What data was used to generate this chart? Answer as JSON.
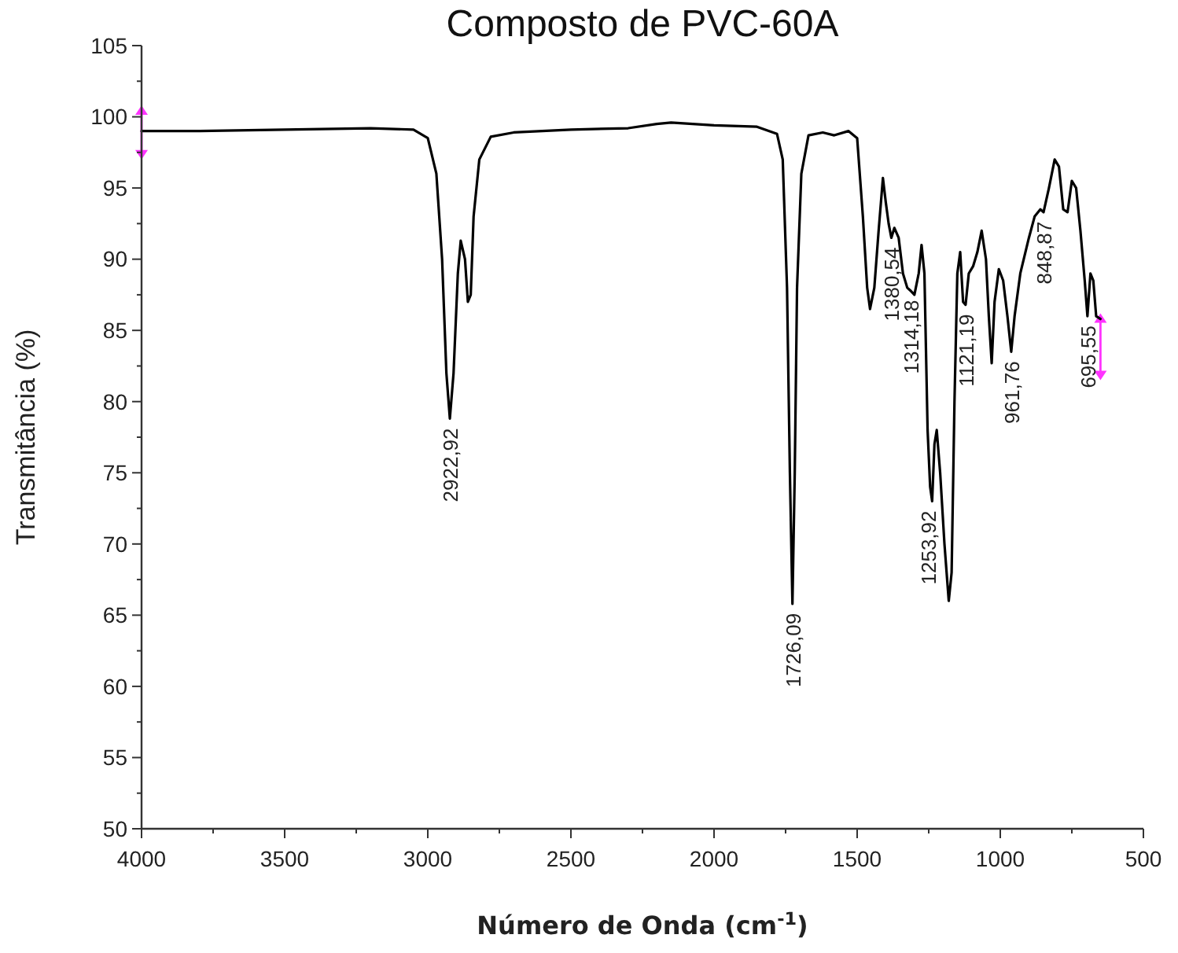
{
  "chart_data": {
    "type": "line",
    "title": "Composto de PVC-60A",
    "xlabel": "Número de Onda (cm$^{-1}$)",
    "ylabel": "Transmitância (%)",
    "xlim": [
      4000,
      500
    ],
    "ylim": [
      50,
      105
    ],
    "xticks": [
      4000,
      {
        "value": 3750,
        "label": null
      },
      3500,
      {
        "value": 3250,
        "label": null
      },
      3000,
      {
        "value": 2750,
        "label": null
      },
      2500,
      {
        "value": 2250,
        "label": null
      },
      2000,
      {
        "value": 1750,
        "label": null
      },
      1500,
      {
        "value": 1250,
        "label": null
      },
      1000,
      {
        "value": 750,
        "label": null
      },
      500
    ],
    "yticks": [
      50,
      {
        "value": 52.5,
        "label": null
      },
      55,
      {
        "value": 57.5,
        "label": null
      },
      60,
      {
        "value": 62.5,
        "label": null
      },
      65,
      {
        "value": 67.5,
        "label": null
      },
      70,
      {
        "value": 72.5,
        "label": null
      },
      75,
      {
        "value": 77.5,
        "label": null
      },
      80,
      {
        "value": 82.5,
        "label": null
      },
      85,
      {
        "value": 87.5,
        "label": null
      },
      90,
      {
        "value": 92.5,
        "label": null
      },
      95,
      {
        "value": 97.5,
        "label": null
      },
      100,
      {
        "value": 102.5,
        "label": null
      },
      105
    ],
    "grid": false,
    "marker": "none",
    "line_style": "solid",
    "series": [
      {
        "color": "#000000",
        "x": [
          4000,
          3800,
          3500,
          3200,
          3050,
          3000,
          2970,
          2950,
          2935,
          2922.92,
          2910,
          2895,
          2885,
          2870,
          2860,
          2850,
          2840,
          2820,
          2780,
          2700,
          2500,
          2300,
          2200,
          2150,
          2000,
          1850,
          1780,
          1760,
          1745,
          1735,
          1726.09,
          1718,
          1710,
          1695,
          1670,
          1620,
          1580,
          1530,
          1500,
          1480,
          1465,
          1455,
          1440,
          1425,
          1410,
          1400,
          1390,
          1380.54,
          1370,
          1355,
          1340,
          1325,
          1314.18,
          1300,
          1285,
          1275,
          1265,
          1253.92,
          1245,
          1238,
          1230,
          1222,
          1210,
          1195,
          1180,
          1170,
          1160,
          1150,
          1140,
          1130,
          1121.19,
          1110,
          1095,
          1080,
          1065,
          1050,
          1040,
          1030,
          1020,
          1005,
          990,
          975,
          961.76,
          950,
          930,
          900,
          880,
          860,
          848.87,
          830,
          810,
          795,
          780,
          765,
          750,
          735,
          720,
          705,
          695.55,
          685,
          675,
          665,
          650
        ],
        "values": [
          99.0,
          99.0,
          99.1,
          99.2,
          99.1,
          98.5,
          96,
          90,
          82,
          78.8,
          82,
          89,
          91.3,
          90,
          87,
          87.5,
          93,
          97,
          98.6,
          98.9,
          99.1,
          99.2,
          99.5,
          99.6,
          99.4,
          99.3,
          98.8,
          97,
          88,
          75,
          65.8,
          75,
          88,
          96,
          98.7,
          98.9,
          98.7,
          99.0,
          98.5,
          93,
          88,
          86.5,
          88,
          92,
          95.7,
          94,
          92.5,
          91.5,
          92.2,
          91.5,
          89,
          88,
          87.8,
          87.5,
          89,
          91,
          89,
          78,
          74,
          73,
          77,
          78,
          75,
          70,
          66,
          68,
          80,
          89,
          90.5,
          87,
          86.8,
          89,
          89.5,
          90.5,
          92,
          90,
          86,
          82.7,
          87,
          89.3,
          88.5,
          86,
          83.5,
          86,
          89,
          91.5,
          93,
          93.5,
          93.3,
          95,
          97,
          96.5,
          93.5,
          93.3,
          95.5,
          95,
          92,
          88.5,
          86,
          89,
          88.5,
          86,
          85.8
        ]
      }
    ],
    "annotations": [
      {
        "text": "2922,92",
        "x": 2922.92,
        "y": 78.8
      },
      {
        "text": "1726,09",
        "x": 1726.09,
        "y": 65.8
      },
      {
        "text": "1380,54",
        "x": 1380.54,
        "y": 91.5
      },
      {
        "text": "1314,18",
        "x": 1314.18,
        "y": 87.8
      },
      {
        "text": "1253,92",
        "x": 1253.92,
        "y": 73
      },
      {
        "text": "1121,19",
        "x": 1121.19,
        "y": 86.8
      },
      {
        "text": "961,76",
        "x": 961.76,
        "y": 83.5
      },
      {
        "text": "848,87",
        "x": 848.87,
        "y": 93.3
      },
      {
        "text": "695,55",
        "x": 695.55,
        "y": 86
      }
    ]
  }
}
